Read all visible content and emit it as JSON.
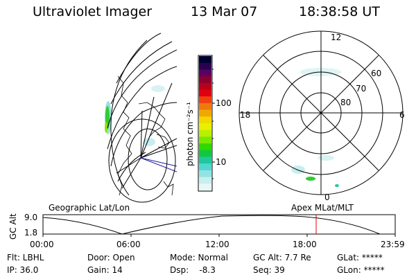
{
  "header": {
    "instrument": "Ultraviolet Imager",
    "date": "13 Mar 07",
    "time": "18:38:58 UT"
  },
  "colorbar": {
    "label": "photon cm⁻²s⁻¹",
    "ticks": [
      "100",
      "10"
    ],
    "colors": [
      "#000030",
      "#2a0050",
      "#5a0060",
      "#8a0030",
      "#b8001a",
      "#e00010",
      "#f04010",
      "#f07810",
      "#f0a800",
      "#f0d800",
      "#e8f000",
      "#b8f000",
      "#78e800",
      "#30d800",
      "#10c840",
      "#20c8a0",
      "#50d8d0",
      "#90e4e4",
      "#c8eeee",
      "#e8f6f6"
    ]
  },
  "polar_plot": {
    "mlt_labels": [
      "12",
      "18",
      "6",
      "0"
    ],
    "lat_labels": [
      "60",
      "70",
      "80"
    ]
  },
  "timeline": {
    "left_label": "Geographic Lat/Lon",
    "right_label": "Apex  MLat/MLT",
    "axis_label": "GC Alt",
    "y_ticks": [
      "9.0",
      "1.8"
    ],
    "x_ticks": [
      "00:00",
      "06:00",
      "12:00",
      "18:00",
      "23:59"
    ],
    "marker_color": "#dd0000"
  },
  "status": {
    "flt": "Flt: LBHL",
    "ip": "IP: 36.0",
    "door": "Door: Open",
    "gain": "Gain: 14",
    "mode": "Mode: Normal",
    "dsp": "Dsp:    -8.3",
    "gcalt": "GC Alt: 7.7 Re",
    "seq": "Seq: 39",
    "glat": "GLat: *****",
    "glon": "GLon: *****"
  }
}
